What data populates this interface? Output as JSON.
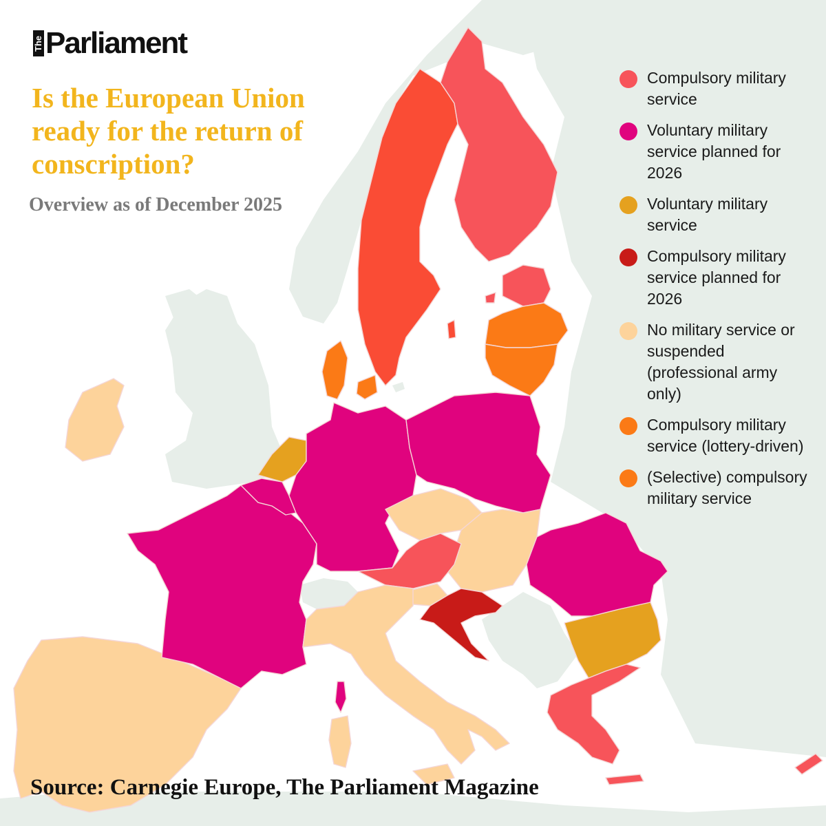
{
  "brand": {
    "the": "The",
    "name": "Parliament"
  },
  "title": "Is the European Union ready for the return of conscription?",
  "subtitle": "Overview as of December 2025",
  "source": "Source: Carnegie Europe, The Parliament Magazine",
  "colors": {
    "background": "#ffffff",
    "land": "#e7eee9",
    "compulsory": "#f7545a",
    "voluntary_planned_2026": "#e0037e",
    "voluntary": "#e5a11f",
    "compulsory_planned_2026": "#c81b18",
    "none": "#fdd39b",
    "lottery": "#fb7a16",
    "selective": "#fb7a16",
    "sweden": "#fa4c35"
  },
  "legend": [
    {
      "label": "Compulsory military service",
      "color": "#f7545a"
    },
    {
      "label": "Voluntary military service planned for 2026",
      "color": "#e0037e"
    },
    {
      "label": "Voluntary military service",
      "color": "#e5a11f"
    },
    {
      "label": "Compulsory military service planned for 2026",
      "color": "#c81b18"
    },
    {
      "label": "No military service or suspended (professional army only)",
      "color": "#fdd39b"
    },
    {
      "label": "Compulsory military service (lottery-driven)",
      "color": "#fb7a16"
    },
    {
      "label": "(Selective) compulsory military service",
      "color": "#fb7a16"
    }
  ]
}
